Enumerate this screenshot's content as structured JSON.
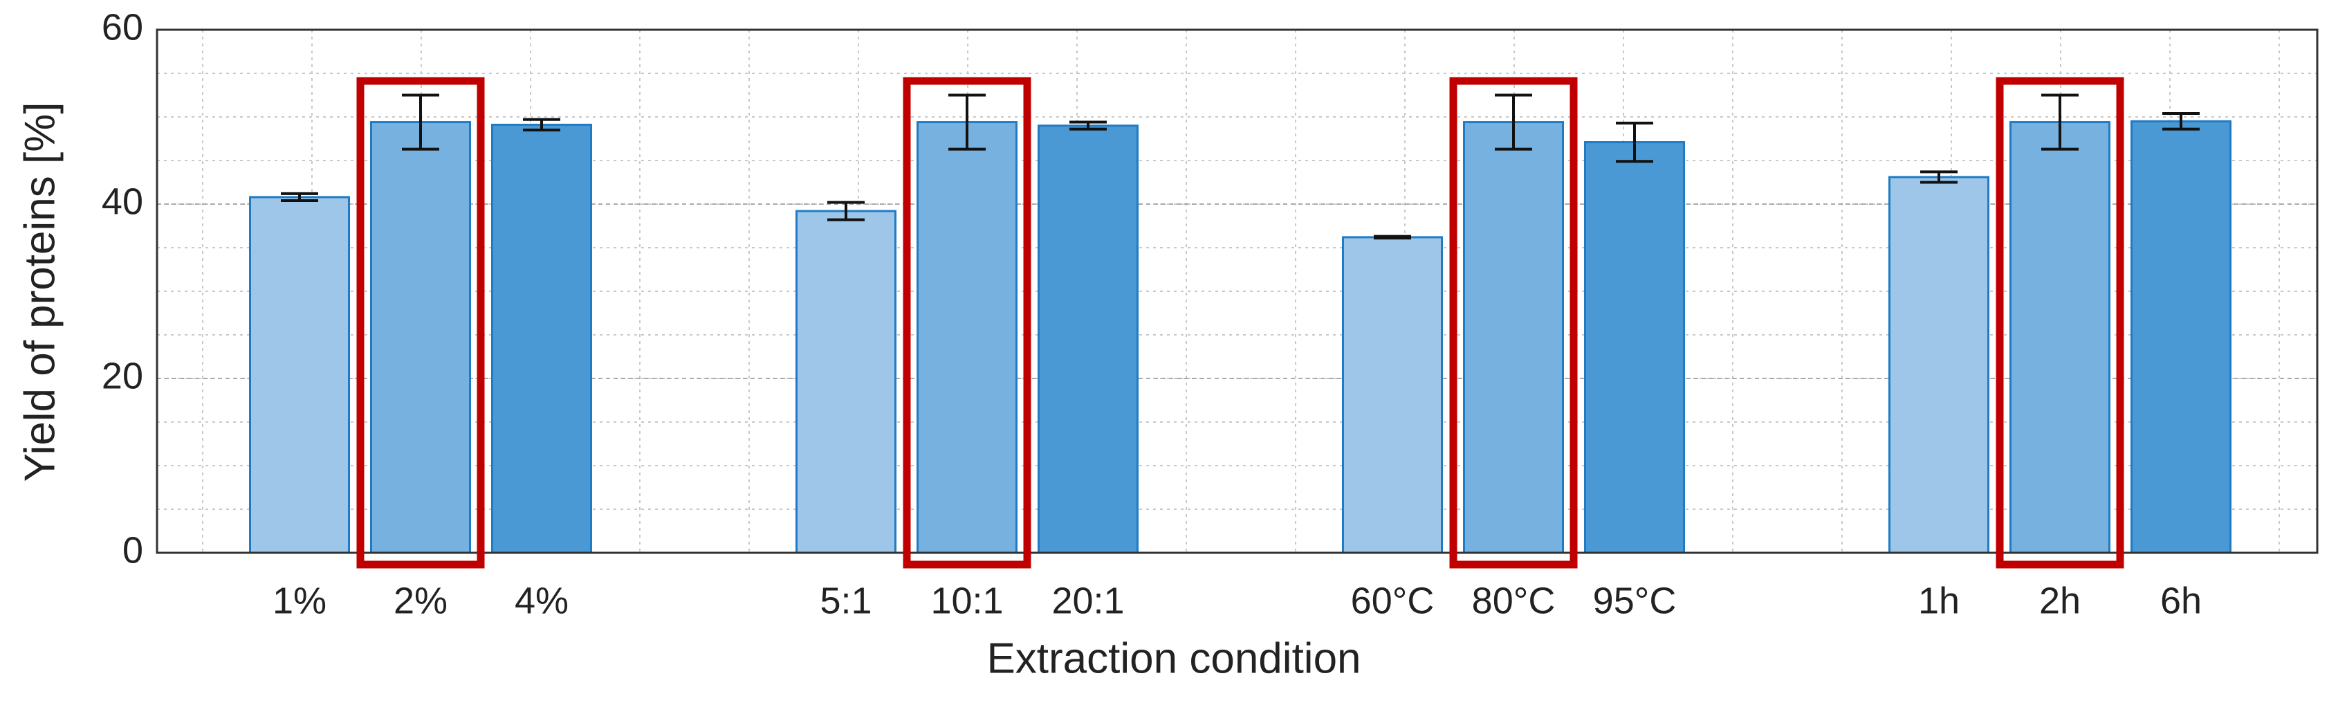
{
  "chart_data": {
    "type": "bar",
    "x_label": "Extraction condition",
    "y_label": "Yield of proteins [%]",
    "categories": [
      "1%",
      "2%",
      "4%",
      "5:1",
      "10:1",
      "20:1",
      "60°C",
      "80°C",
      "95°C",
      "1h",
      "2h",
      "6h"
    ],
    "values": [
      40.8,
      49.4,
      49.1,
      39.2,
      49.4,
      49.0,
      36.2,
      49.4,
      47.1,
      43.1,
      49.4,
      49.5
    ],
    "errors": [
      0.4,
      3.1,
      0.6,
      1.0,
      3.1,
      0.4,
      0.1,
      3.1,
      2.2,
      0.6,
      3.1,
      0.9
    ],
    "colors": [
      "#9dc6e8",
      "#76b1df",
      "#4a99d4",
      "#9dc6e8",
      "#76b1df",
      "#4a99d4",
      "#9dc6e8",
      "#76b1df",
      "#4a99d4",
      "#9dc6e8",
      "#76b1df",
      "#4a99d4"
    ],
    "edge_color": "#1f7cc4",
    "highlight": [
      1,
      4,
      7,
      10
    ],
    "highlight_color": "#c00000",
    "ylim": [
      0,
      60
    ],
    "yticks": [
      0,
      20,
      40,
      60
    ],
    "grid": true
  }
}
